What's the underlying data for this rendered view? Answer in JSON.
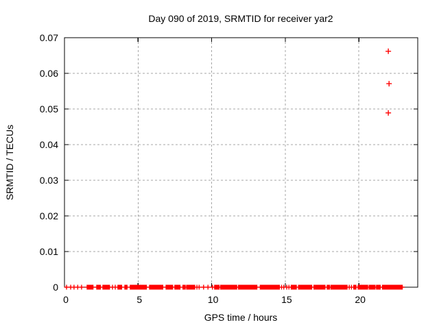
{
  "window": {
    "background": "#ffffff"
  },
  "chart_data": {
    "type": "scatter",
    "title": "Day 090 of 2019, SRMTID for receiver yar2",
    "xlabel": "GPS time / hours",
    "ylabel": "SRMTID / TECUs",
    "xlim": [
      0,
      24
    ],
    "ylim": [
      0,
      0.07
    ],
    "xticks": [
      0,
      5,
      10,
      15,
      20
    ],
    "xtick_labels": [
      "0",
      "5",
      "10",
      "15",
      "20"
    ],
    "yticks": [
      0,
      0.01,
      0.02,
      0.03,
      0.04,
      0.05,
      0.06,
      0.07
    ],
    "ytick_labels": [
      "0",
      "0.01",
      "0.02",
      "0.03",
      "0.04",
      "0.05",
      "0.06",
      "0.07"
    ],
    "grid": true,
    "grid_style": "dashed",
    "grid_color": "#a6a6a6",
    "axis_color": "#000000",
    "marker": "plus",
    "marker_color": "#ff0000",
    "outliers": [
      {
        "x": 22.0,
        "y": 0.0662
      },
      {
        "x": 22.05,
        "y": 0.0571
      },
      {
        "x": 22.0,
        "y": 0.0489
      }
    ],
    "baseline_y": 0,
    "baseline_step": 0.05,
    "baseline_segments": [
      [
        0.14,
        0.14
      ],
      [
        0.42,
        0.42
      ],
      [
        0.65,
        0.65
      ],
      [
        0.9,
        0.9
      ],
      [
        1.16,
        1.16
      ],
      [
        1.54,
        1.96
      ],
      [
        2.19,
        2.47
      ],
      [
        2.61,
        3.08
      ],
      [
        3.26,
        3.26
      ],
      [
        3.45,
        3.45
      ],
      [
        3.63,
        3.91
      ],
      [
        4.1,
        4.29
      ],
      [
        4.47,
        5.59
      ],
      [
        5.78,
        6.71
      ],
      [
        6.9,
        7.36
      ],
      [
        7.5,
        7.87
      ],
      [
        8.05,
        8.2
      ],
      [
        8.3,
        8.85
      ],
      [
        9.0,
        9.0
      ],
      [
        9.15,
        9.15
      ],
      [
        9.45,
        9.45
      ],
      [
        9.75,
        9.75
      ],
      [
        10.05,
        10.05
      ],
      [
        10.2,
        10.5
      ],
      [
        10.6,
        11.7
      ],
      [
        11.82,
        13.08
      ],
      [
        13.3,
        14.6
      ],
      [
        14.75,
        14.75
      ],
      [
        14.9,
        14.9
      ],
      [
        15.1,
        15.1
      ],
      [
        15.25,
        15.25
      ],
      [
        15.4,
        15.75
      ],
      [
        15.9,
        16.8
      ],
      [
        16.95,
        17.7
      ],
      [
        17.85,
        18.0
      ],
      [
        18.1,
        19.2
      ],
      [
        19.35,
        19.35
      ],
      [
        19.5,
        19.5
      ],
      [
        19.65,
        19.8
      ],
      [
        19.95,
        20.6
      ],
      [
        20.7,
        21.1
      ],
      [
        21.2,
        21.45
      ],
      [
        21.6,
        22.95
      ]
    ]
  }
}
